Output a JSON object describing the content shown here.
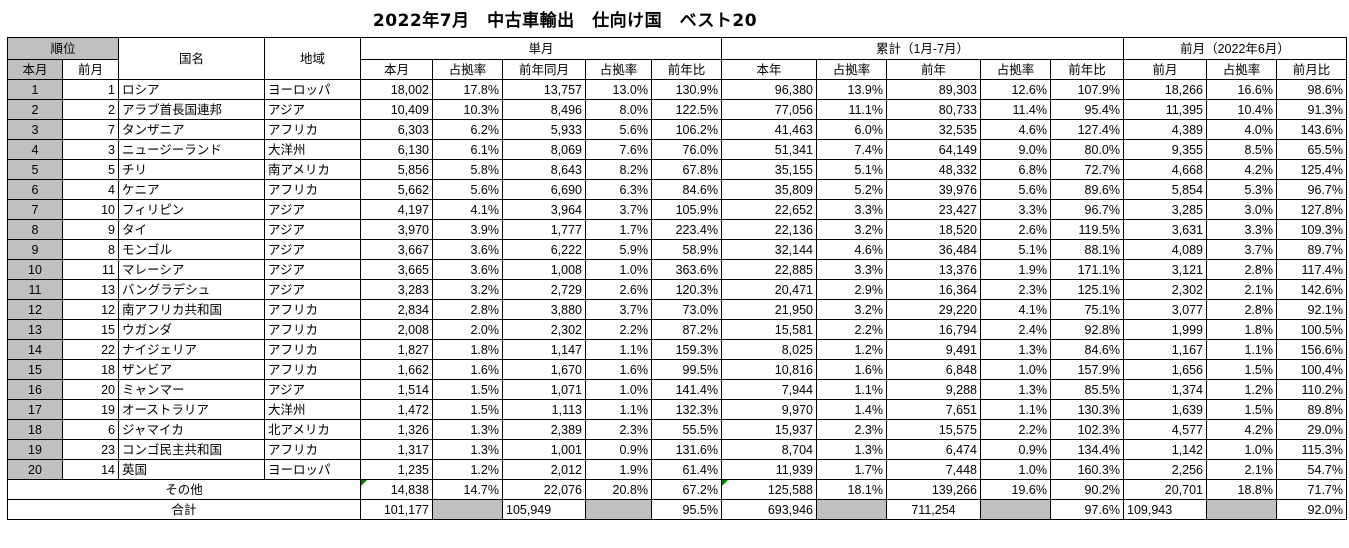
{
  "title": "2022年7月　中古車輸出　仕向け国　ベスト20",
  "headers": {
    "rank": "順位",
    "country": "国名",
    "region": "地域",
    "single_month": "単月",
    "cumulative": "累計（1月-7月）",
    "prev_month_group": "前月（2022年6月）",
    "this_month": "本月",
    "prev_month": "前月",
    "share": "占拠率",
    "yoy_same_month": "前年同月",
    "yoy_ratio": "前年比",
    "this_year": "本年",
    "prev_year": "前年",
    "prev_ratio": "前月比"
  },
  "rows": [
    {
      "rank": "1",
      "prev_rank": "1",
      "country": "ロシア",
      "region": "ヨーロッパ",
      "m_units": "18,002",
      "m_share": "17.8%",
      "m_ly": "13,757",
      "m_ly_share": "13.0%",
      "m_yoy": "130.9%",
      "c_units": "96,380",
      "c_share": "13.9%",
      "c_ly": "89,303",
      "c_ly_share": "12.6%",
      "c_yoy": "107.9%",
      "p_units": "18,266",
      "p_share": "16.6%",
      "p_ratio": "98.6%"
    },
    {
      "rank": "2",
      "prev_rank": "2",
      "country": "アラブ首長国連邦",
      "region": "アジア",
      "m_units": "10,409",
      "m_share": "10.3%",
      "m_ly": "8,496",
      "m_ly_share": "8.0%",
      "m_yoy": "122.5%",
      "c_units": "77,056",
      "c_share": "11.1%",
      "c_ly": "80,733",
      "c_ly_share": "11.4%",
      "c_yoy": "95.4%",
      "p_units": "11,395",
      "p_share": "10.4%",
      "p_ratio": "91.3%"
    },
    {
      "rank": "3",
      "prev_rank": "7",
      "country": "タンザニア",
      "region": "アフリカ",
      "m_units": "6,303",
      "m_share": "6.2%",
      "m_ly": "5,933",
      "m_ly_share": "5.6%",
      "m_yoy": "106.2%",
      "c_units": "41,463",
      "c_share": "6.0%",
      "c_ly": "32,535",
      "c_ly_share": "4.6%",
      "c_yoy": "127.4%",
      "p_units": "4,389",
      "p_share": "4.0%",
      "p_ratio": "143.6%"
    },
    {
      "rank": "4",
      "prev_rank": "3",
      "country": "ニュージーランド",
      "region": "大洋州",
      "m_units": "6,130",
      "m_share": "6.1%",
      "m_ly": "8,069",
      "m_ly_share": "7.6%",
      "m_yoy": "76.0%",
      "c_units": "51,341",
      "c_share": "7.4%",
      "c_ly": "64,149",
      "c_ly_share": "9.0%",
      "c_yoy": "80.0%",
      "p_units": "9,355",
      "p_share": "8.5%",
      "p_ratio": "65.5%"
    },
    {
      "rank": "5",
      "prev_rank": "5",
      "country": "チリ",
      "region": "南アメリカ",
      "m_units": "5,856",
      "m_share": "5.8%",
      "m_ly": "8,643",
      "m_ly_share": "8.2%",
      "m_yoy": "67.8%",
      "c_units": "35,155",
      "c_share": "5.1%",
      "c_ly": "48,332",
      "c_ly_share": "6.8%",
      "c_yoy": "72.7%",
      "p_units": "4,668",
      "p_share": "4.2%",
      "p_ratio": "125.4%"
    },
    {
      "rank": "6",
      "prev_rank": "4",
      "country": "ケニア",
      "region": "アフリカ",
      "m_units": "5,662",
      "m_share": "5.6%",
      "m_ly": "6,690",
      "m_ly_share": "6.3%",
      "m_yoy": "84.6%",
      "c_units": "35,809",
      "c_share": "5.2%",
      "c_ly": "39,976",
      "c_ly_share": "5.6%",
      "c_yoy": "89.6%",
      "p_units": "5,854",
      "p_share": "5.3%",
      "p_ratio": "96.7%"
    },
    {
      "rank": "7",
      "prev_rank": "10",
      "country": "フィリピン",
      "region": "アジア",
      "m_units": "4,197",
      "m_share": "4.1%",
      "m_ly": "3,964",
      "m_ly_share": "3.7%",
      "m_yoy": "105.9%",
      "c_units": "22,652",
      "c_share": "3.3%",
      "c_ly": "23,427",
      "c_ly_share": "3.3%",
      "c_yoy": "96.7%",
      "p_units": "3,285",
      "p_share": "3.0%",
      "p_ratio": "127.8%"
    },
    {
      "rank": "8",
      "prev_rank": "9",
      "country": "タイ",
      "region": "アジア",
      "m_units": "3,970",
      "m_share": "3.9%",
      "m_ly": "1,777",
      "m_ly_share": "1.7%",
      "m_yoy": "223.4%",
      "c_units": "22,136",
      "c_share": "3.2%",
      "c_ly": "18,520",
      "c_ly_share": "2.6%",
      "c_yoy": "119.5%",
      "p_units": "3,631",
      "p_share": "3.3%",
      "p_ratio": "109.3%"
    },
    {
      "rank": "9",
      "prev_rank": "8",
      "country": "モンゴル",
      "region": "アジア",
      "m_units": "3,667",
      "m_share": "3.6%",
      "m_ly": "6,222",
      "m_ly_share": "5.9%",
      "m_yoy": "58.9%",
      "c_units": "32,144",
      "c_share": "4.6%",
      "c_ly": "36,484",
      "c_ly_share": "5.1%",
      "c_yoy": "88.1%",
      "p_units": "4,089",
      "p_share": "3.7%",
      "p_ratio": "89.7%"
    },
    {
      "rank": "10",
      "prev_rank": "11",
      "country": "マレーシア",
      "region": "アジア",
      "m_units": "3,665",
      "m_share": "3.6%",
      "m_ly": "1,008",
      "m_ly_share": "1.0%",
      "m_yoy": "363.6%",
      "c_units": "22,885",
      "c_share": "3.3%",
      "c_ly": "13,376",
      "c_ly_share": "1.9%",
      "c_yoy": "171.1%",
      "p_units": "3,121",
      "p_share": "2.8%",
      "p_ratio": "117.4%"
    },
    {
      "rank": "11",
      "prev_rank": "13",
      "country": "バングラデシュ",
      "region": "アジア",
      "m_units": "3,283",
      "m_share": "3.2%",
      "m_ly": "2,729",
      "m_ly_share": "2.6%",
      "m_yoy": "120.3%",
      "c_units": "20,471",
      "c_share": "2.9%",
      "c_ly": "16,364",
      "c_ly_share": "2.3%",
      "c_yoy": "125.1%",
      "p_units": "2,302",
      "p_share": "2.1%",
      "p_ratio": "142.6%"
    },
    {
      "rank": "12",
      "prev_rank": "12",
      "country": "南アフリカ共和国",
      "region": "アフリカ",
      "m_units": "2,834",
      "m_share": "2.8%",
      "m_ly": "3,880",
      "m_ly_share": "3.7%",
      "m_yoy": "73.0%",
      "c_units": "21,950",
      "c_share": "3.2%",
      "c_ly": "29,220",
      "c_ly_share": "4.1%",
      "c_yoy": "75.1%",
      "p_units": "3,077",
      "p_share": "2.8%",
      "p_ratio": "92.1%"
    },
    {
      "rank": "13",
      "prev_rank": "15",
      "country": "ウガンダ",
      "region": "アフリカ",
      "m_units": "2,008",
      "m_share": "2.0%",
      "m_ly": "2,302",
      "m_ly_share": "2.2%",
      "m_yoy": "87.2%",
      "c_units": "15,581",
      "c_share": "2.2%",
      "c_ly": "16,794",
      "c_ly_share": "2.4%",
      "c_yoy": "92.8%",
      "p_units": "1,999",
      "p_share": "1.8%",
      "p_ratio": "100.5%"
    },
    {
      "rank": "14",
      "prev_rank": "22",
      "country": "ナイジェリア",
      "region": "アフリカ",
      "m_units": "1,827",
      "m_share": "1.8%",
      "m_ly": "1,147",
      "m_ly_share": "1.1%",
      "m_yoy": "159.3%",
      "c_units": "8,025",
      "c_share": "1.2%",
      "c_ly": "9,491",
      "c_ly_share": "1.3%",
      "c_yoy": "84.6%",
      "p_units": "1,167",
      "p_share": "1.1%",
      "p_ratio": "156.6%"
    },
    {
      "rank": "15",
      "prev_rank": "18",
      "country": "ザンビア",
      "region": "アフリカ",
      "m_units": "1,662",
      "m_share": "1.6%",
      "m_ly": "1,670",
      "m_ly_share": "1.6%",
      "m_yoy": "99.5%",
      "c_units": "10,816",
      "c_share": "1.6%",
      "c_ly": "6,848",
      "c_ly_share": "1.0%",
      "c_yoy": "157.9%",
      "p_units": "1,656",
      "p_share": "1.5%",
      "p_ratio": "100.4%"
    },
    {
      "rank": "16",
      "prev_rank": "20",
      "country": "ミャンマー",
      "region": "アジア",
      "m_units": "1,514",
      "m_share": "1.5%",
      "m_ly": "1,071",
      "m_ly_share": "1.0%",
      "m_yoy": "141.4%",
      "c_units": "7,944",
      "c_share": "1.1%",
      "c_ly": "9,288",
      "c_ly_share": "1.3%",
      "c_yoy": "85.5%",
      "p_units": "1,374",
      "p_share": "1.2%",
      "p_ratio": "110.2%"
    },
    {
      "rank": "17",
      "prev_rank": "19",
      "country": "オーストラリア",
      "region": "大洋州",
      "m_units": "1,472",
      "m_share": "1.5%",
      "m_ly": "1,113",
      "m_ly_share": "1.1%",
      "m_yoy": "132.3%",
      "c_units": "9,970",
      "c_share": "1.4%",
      "c_ly": "7,651",
      "c_ly_share": "1.1%",
      "c_yoy": "130.3%",
      "p_units": "1,639",
      "p_share": "1.5%",
      "p_ratio": "89.8%"
    },
    {
      "rank": "18",
      "prev_rank": "6",
      "country": "ジャマイカ",
      "region": "北アメリカ",
      "m_units": "1,326",
      "m_share": "1.3%",
      "m_ly": "2,389",
      "m_ly_share": "2.3%",
      "m_yoy": "55.5%",
      "c_units": "15,937",
      "c_share": "2.3%",
      "c_ly": "15,575",
      "c_ly_share": "2.2%",
      "c_yoy": "102.3%",
      "p_units": "4,577",
      "p_share": "4.2%",
      "p_ratio": "29.0%"
    },
    {
      "rank": "19",
      "prev_rank": "23",
      "country": "コンゴ民主共和国",
      "region": "アフリカ",
      "m_units": "1,317",
      "m_share": "1.3%",
      "m_ly": "1,001",
      "m_ly_share": "0.9%",
      "m_yoy": "131.6%",
      "c_units": "8,704",
      "c_share": "1.3%",
      "c_ly": "6,474",
      "c_ly_share": "0.9%",
      "c_yoy": "134.4%",
      "p_units": "1,142",
      "p_share": "1.0%",
      "p_ratio": "115.3%"
    },
    {
      "rank": "20",
      "prev_rank": "14",
      "country": "英国",
      "region": "ヨーロッパ",
      "m_units": "1,235",
      "m_share": "1.2%",
      "m_ly": "2,012",
      "m_ly_share": "1.9%",
      "m_yoy": "61.4%",
      "c_units": "11,939",
      "c_share": "1.7%",
      "c_ly": "7,448",
      "c_ly_share": "1.0%",
      "c_yoy": "160.3%",
      "p_units": "2,256",
      "p_share": "2.1%",
      "p_ratio": "54.7%"
    }
  ],
  "others": {
    "label": "その他",
    "m_units": "14,838",
    "m_share": "14.7%",
    "m_ly": "22,076",
    "m_ly_share": "20.8%",
    "m_yoy": "67.2%",
    "c_units": "125,588",
    "c_share": "18.1%",
    "c_ly": "139,266",
    "c_ly_share": "19.6%",
    "c_yoy": "90.2%",
    "p_units": "20,701",
    "p_share": "18.8%",
    "p_ratio": "71.7%"
  },
  "total": {
    "label": "合計",
    "m_units": "101,177",
    "m_ly": "105,949",
    "m_yoy": "95.5%",
    "c_units": "693,946",
    "c_ly": "711,254",
    "c_yoy": "97.6%",
    "p_units": "109,943",
    "p_ratio": "92.0%"
  }
}
